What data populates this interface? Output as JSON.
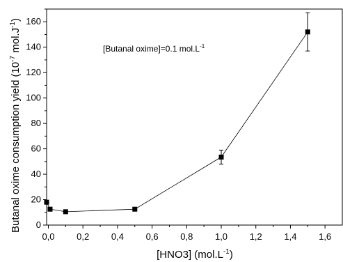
{
  "chart_data": {
    "type": "line",
    "x": [
      -0.01,
      0.01,
      0.1,
      0.5,
      1.0,
      1.5
    ],
    "series": [
      {
        "values": [
          18,
          12.5,
          10.5,
          12.5,
          53.5,
          152
        ],
        "error": [
          0,
          0,
          0,
          0,
          5.5,
          15
        ],
        "color": "#000000",
        "marker": "square"
      }
    ],
    "xlabel": {
      "text": "[HNO3] (mol.L",
      "sup": "-1",
      "tail": ")"
    },
    "ylabel": {
      "text": "Butanal oxime consumption yield (10",
      "sup1": "-7",
      "mid": " mol.J",
      "sup2": "-1",
      "tail": ")"
    },
    "annotation": {
      "text": "[Butanal oxime]=0.1 mol.L",
      "sup": "-1"
    },
    "xlim": [
      -0.01,
      1.7
    ],
    "ylim": [
      0,
      170
    ],
    "xticks": [
      0.0,
      0.2,
      0.4,
      0.6,
      0.8,
      1.0,
      1.2,
      1.4,
      1.6
    ],
    "xtick_labels": [
      "0,0",
      "0,2",
      "0,4",
      "0,6",
      "0,8",
      "1,0",
      "1,2",
      "1,4",
      "1,6"
    ],
    "yticks": [
      0,
      20,
      40,
      60,
      80,
      100,
      120,
      140,
      160
    ],
    "ytick_labels": [
      "0",
      "20",
      "40",
      "60",
      "80",
      "100",
      "120",
      "140",
      "160"
    ],
    "grid": false,
    "legend": "none"
  }
}
